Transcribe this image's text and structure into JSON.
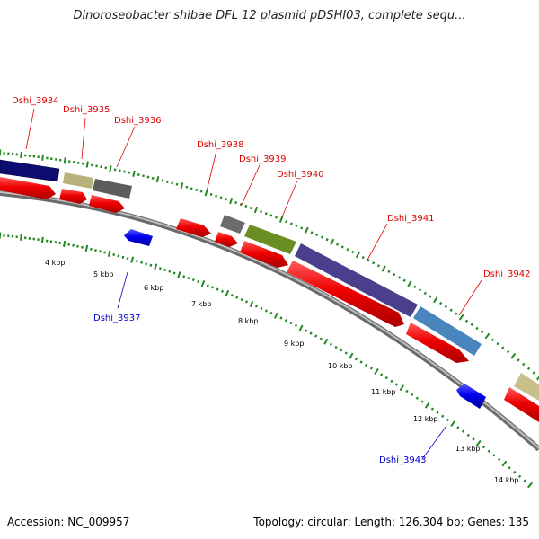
{
  "title": "Dinoroseobacter shibae DFL 12 plasmid pDSHI03, complete sequ...",
  "footer": {
    "accession": "Accession: NC_009957",
    "topology": "Topology: circular; Length: 126,304 bp; Genes: 135"
  },
  "colors": {
    "forward_label": "#dd0000",
    "reverse_label": "#0000cc",
    "forward_cds": "#ee0000",
    "reverse_cds": "#0000ee",
    "backbone": "#888888",
    "tick": "#228822"
  },
  "scale_ticks": [
    {
      "kbp": 4,
      "label": "4 kbp"
    },
    {
      "kbp": 5,
      "label": "5 kbp"
    },
    {
      "kbp": 6,
      "label": "6 kbp"
    },
    {
      "kbp": 7,
      "label": "7 kbp"
    },
    {
      "kbp": 8,
      "label": "8 kbp"
    },
    {
      "kbp": 9,
      "label": "9 kbp"
    },
    {
      "kbp": 10,
      "label": "10 kbp"
    },
    {
      "kbp": 11,
      "label": "11 kbp"
    },
    {
      "kbp": 12,
      "label": "12 kbp"
    },
    {
      "kbp": 13,
      "label": "13 kbp"
    },
    {
      "kbp": 14,
      "label": "14 kbp"
    }
  ],
  "gene_labels": [
    {
      "name": "Dshi_3934",
      "strand": "forward"
    },
    {
      "name": "Dshi_3935",
      "strand": "forward"
    },
    {
      "name": "Dshi_3936",
      "strand": "forward"
    },
    {
      "name": "Dshi_3937",
      "strand": "reverse"
    },
    {
      "name": "Dshi_3938",
      "strand": "forward"
    },
    {
      "name": "Dshi_3939",
      "strand": "forward"
    },
    {
      "name": "Dshi_3940",
      "strand": "forward"
    },
    {
      "name": "Dshi_3941",
      "strand": "forward"
    },
    {
      "name": "Dshi_3942",
      "strand": "forward"
    },
    {
      "name": "Dshi_3943",
      "strand": "reverse"
    }
  ]
}
